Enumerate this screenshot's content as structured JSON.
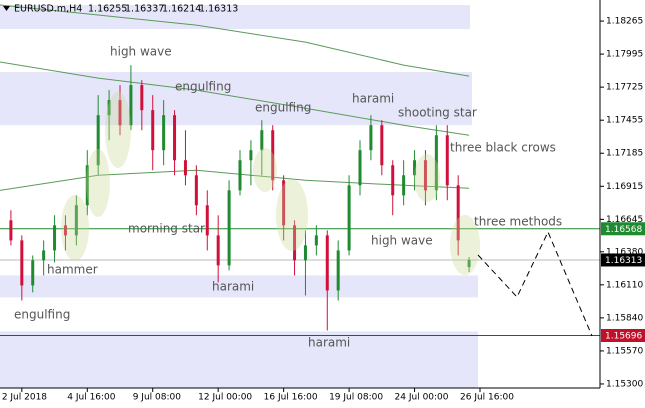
{
  "chart_data": {
    "type": "candlestick",
    "header": {
      "symbol": "EURUSD.m,H4",
      "values": [
        1.16255,
        1.16337,
        1.16214,
        1.16313
      ]
    },
    "xlim": [
      -1,
      54
    ],
    "xticks": [
      {
        "value": 1,
        "label": "2 Jul 2018"
      },
      {
        "value": 7,
        "label": "4 Jul 16:00"
      },
      {
        "value": 13,
        "label": "9 Jul 08:00"
      },
      {
        "value": 19,
        "label": "12 Jul 00:00"
      },
      {
        "value": 25,
        "label": "16 Jul 16:00"
      },
      {
        "value": 31,
        "label": "19 Jul 08:00"
      },
      {
        "value": 37,
        "label": "24 Jul 00:00"
      },
      {
        "value": 43,
        "label": "26 Jul 16:00"
      }
    ],
    "ylim": [
      1.15267,
      1.18437
    ],
    "yticks": [
      1.18265,
      1.17995,
      1.17725,
      1.17455,
      1.17185,
      1.16915,
      1.16645,
      {
        "value": 1.1638,
        "label": "1.16380"
      },
      {
        "value": 1.1611,
        "label": "1.16110"
      },
      {
        "value": 1.1584,
        "label": "1.15840"
      },
      {
        "value": 1.1557,
        "label": "1.15570"
      },
      {
        "value": 1.153,
        "label": "1.15300"
      }
    ],
    "up_color": "#1f8a30",
    "down_color": "#d0103a",
    "open": [
      1.16637,
      1.16473,
      1.16105,
      1.1631,
      1.16391,
      1.16596,
      1.16514,
      1.1676,
      1.17087,
      1.17496,
      1.17619,
      1.17414,
      1.17742,
      1.17537,
      1.1721,
      1.17496,
      1.17128,
      1.17005,
      1.1676,
      1.16514,
      1.16269,
      1.16882,
      1.17128,
      1.1721,
      1.17373,
      1.16964,
      1.16596,
      1.1631,
      1.16432,
      1.16514,
      1.16064,
      1.16391,
      1.16923,
      1.1721,
      1.17414,
      1.17087,
      1.16841,
      1.17005,
      1.17128,
      1.16882,
      1.17332,
      1.16923,
      1.16255
    ],
    "high": [
      1.16719,
      1.16514,
      1.1635,
      1.16473,
      1.16678,
      1.16678,
      1.16841,
      1.1721,
      1.1766,
      1.17701,
      1.17742,
      1.17905,
      1.17782,
      1.1766,
      1.17619,
      1.17537,
      1.17373,
      1.17087,
      1.16882,
      1.16678,
      1.16964,
      1.1721,
      1.17291,
      1.17455,
      1.17414,
      1.17005,
      1.16637,
      1.16555,
      1.16596,
      1.16555,
      1.16473,
      1.17005,
      1.17291,
      1.17496,
      1.17455,
      1.17128,
      1.17128,
      1.1721,
      1.1721,
      1.17414,
      1.17414,
      1.17005,
      1.16337
    ],
    "low": [
      1.16432,
      1.15982,
      1.16048,
      1.16187,
      1.16293,
      1.16391,
      1.16432,
      1.16678,
      1.17005,
      1.17291,
      1.17332,
      1.17373,
      1.17373,
      1.17046,
      1.17087,
      1.17005,
      1.16923,
      1.16678,
      1.16391,
      1.1613,
      1.16228,
      1.16841,
      1.16923,
      1.17005,
      1.16882,
      1.16473,
      1.16187,
      1.16023,
      1.1635,
      1.15737,
      1.15982,
      1.1635,
      1.16841,
      1.17128,
      1.17005,
      1.16678,
      1.1676,
      1.16882,
      1.1676,
      1.16801,
      1.16801,
      1.1635,
      1.16214
    ],
    "close": [
      1.16473,
      1.16105,
      1.1631,
      1.16391,
      1.16596,
      1.16514,
      1.1676,
      1.17087,
      1.17496,
      1.17619,
      1.17414,
      1.17742,
      1.17537,
      1.1721,
      1.17496,
      1.17128,
      1.17005,
      1.1676,
      1.16514,
      1.16269,
      1.16882,
      1.17128,
      1.1721,
      1.17373,
      1.16964,
      1.16596,
      1.1631,
      1.16432,
      1.16514,
      1.16064,
      1.16391,
      1.16923,
      1.1721,
      1.17414,
      1.17087,
      1.16841,
      1.17005,
      1.17128,
      1.16882,
      1.17332,
      1.16923,
      1.16473,
      1.16313
    ],
    "ma_x": [
      -1,
      8,
      17,
      27,
      36,
      42
    ],
    "moving_averages": [
      {
        "color": "#5a9a5a",
        "values": [
          1.18396,
          1.18314,
          1.18232,
          1.18093,
          1.17905,
          1.17815
        ]
      },
      {
        "color": "#5a9a5a",
        "values": [
          1.1793,
          1.17799,
          1.17701,
          1.17553,
          1.17414,
          1.17332
        ]
      },
      {
        "color": "#5a9a5a",
        "values": [
          1.16882,
          1.17005,
          1.17046,
          1.16964,
          1.16923,
          1.16899
        ]
      }
    ],
    "zones": [
      [
        1.18396,
        1.182
      ],
      [
        1.17848,
        1.17414
      ],
      [
        1.16187,
        1.16007
      ],
      [
        1.15729,
        1.15267
      ]
    ],
    "zone_color": "#e6e6fa",
    "levels": [
      {
        "value": 1.16568,
        "color": "#1f8a30"
      },
      {
        "value": 1.16313,
        "color": "#000000"
      },
      {
        "value": 1.15696,
        "color": "#c0102a"
      }
    ],
    "annotations": [
      "high wave",
      "engulfing",
      "engulfing",
      "harami",
      "shooting star",
      "three black crows",
      "morning star",
      "three methods",
      "high wave",
      "hammer",
      "harami",
      "engulfing",
      "harami"
    ]
  }
}
